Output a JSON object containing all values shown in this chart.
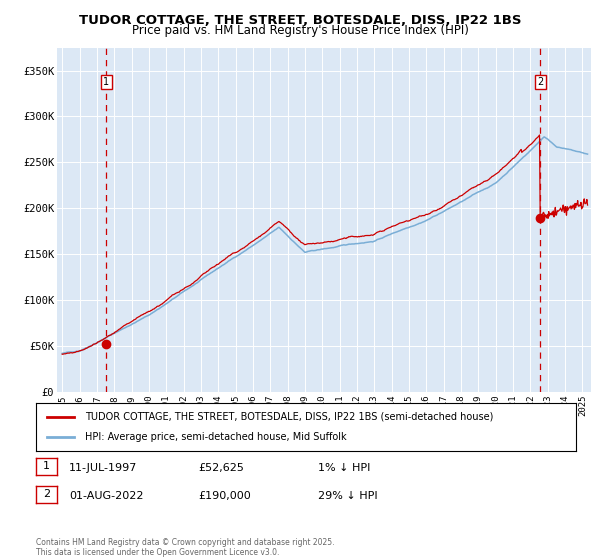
{
  "title1": "TUDOR COTTAGE, THE STREET, BOTESDALE, DISS, IP22 1BS",
  "title2": "Price paid vs. HM Land Registry's House Price Index (HPI)",
  "ylabel_ticks": [
    "£0",
    "£50K",
    "£100K",
    "£150K",
    "£200K",
    "£250K",
    "£300K",
    "£350K"
  ],
  "ytick_vals": [
    0,
    50000,
    100000,
    150000,
    200000,
    250000,
    300000,
    350000
  ],
  "ylim": [
    0,
    375000
  ],
  "xlim_start": 1994.7,
  "xlim_end": 2025.5,
  "xticks": [
    1995,
    1996,
    1997,
    1998,
    1999,
    2000,
    2001,
    2002,
    2003,
    2004,
    2005,
    2006,
    2007,
    2008,
    2009,
    2010,
    2011,
    2012,
    2013,
    2014,
    2015,
    2016,
    2017,
    2018,
    2019,
    2020,
    2021,
    2022,
    2023,
    2024,
    2025
  ],
  "sale1_x": 1997.53,
  "sale1_y": 52625,
  "sale2_x": 2022.58,
  "sale2_y": 190000,
  "hpi_color": "#7aaed6",
  "price_color": "#cc0000",
  "dashed_color": "#cc0000",
  "plot_bg": "#dce8f5",
  "grid_color": "#ffffff",
  "legend_line1": "TUDOR COTTAGE, THE STREET, BOTESDALE, DISS, IP22 1BS (semi-detached house)",
  "legend_line2": "HPI: Average price, semi-detached house, Mid Suffolk",
  "footer": "Contains HM Land Registry data © Crown copyright and database right 2025.\nThis data is licensed under the Open Government Licence v3.0."
}
